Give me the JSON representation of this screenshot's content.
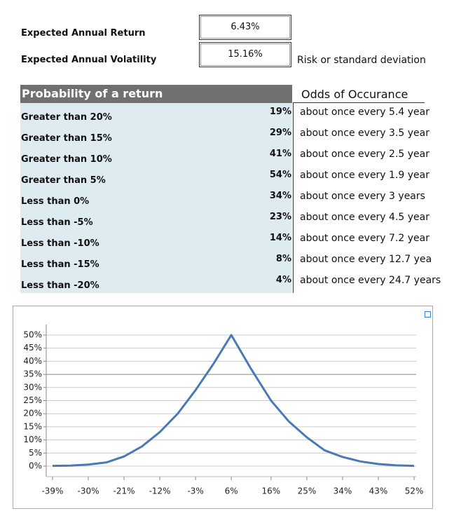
{
  "inputs": [
    {
      "label": "Expected Annual Return",
      "value": "6.43%"
    },
    {
      "label": "Expected Annual Volatility",
      "value": "15.16%",
      "note": "Risk or standard deviation"
    }
  ],
  "table": {
    "header": "Probability of a return",
    "odds_header": "Odds of Occurance",
    "rows": [
      [
        "Greater than 20%",
        "19%",
        "about once every 5.4 year"
      ],
      [
        "Greater than 15%",
        "29%",
        "about once every 3.5 year"
      ],
      [
        "Greater than 10%",
        "41%",
        "about once every 2.5 year"
      ],
      [
        "Greater than 5%",
        "54%",
        "about once every 1.9 year"
      ],
      [
        "Less than 0%",
        "34%",
        "about once every 3 years"
      ],
      [
        "Less than -5%",
        "23%",
        "about once every 4.5 year"
      ],
      [
        "Less than -10%",
        "14%",
        "about once every 7.2 year"
      ],
      [
        "Less than -15%",
        "8%",
        "about once every 12.7 yea"
      ],
      [
        "Less than -20%",
        "4%",
        "about once every 24.7 years"
      ]
    ]
  },
  "chart_data": {
    "type": "line",
    "color": "#4a7ab5",
    "grid": true,
    "x": [
      -39,
      -34.5,
      -30,
      -25.5,
      -21,
      -16.5,
      -12,
      -7.5,
      -3,
      1.5,
      6,
      11,
      16,
      20.5,
      25,
      29.5,
      34,
      38.5,
      43,
      47.5,
      52
    ],
    "values": [
      0.1,
      0.2,
      0.6,
      1.4,
      3.7,
      7.5,
      13,
      20,
      29,
      39,
      50,
      37,
      25,
      17,
      11,
      6,
      3.5,
      1.8,
      0.8,
      0.3,
      0.1
    ],
    "xlim": [
      -40,
      53
    ],
    "xticks": [
      {
        "value": -39,
        "label": "-39%"
      },
      {
        "value": -30,
        "label": "-30%"
      },
      {
        "value": -21,
        "label": "-21%"
      },
      {
        "value": -12,
        "label": "-12%"
      },
      {
        "value": -3,
        "label": "-3%"
      },
      {
        "value": 6,
        "label": "6%"
      },
      {
        "value": 16,
        "label": "16%"
      },
      {
        "value": 25,
        "label": "25%"
      },
      {
        "value": 34,
        "label": "34%"
      },
      {
        "value": 43,
        "label": "43%"
      },
      {
        "value": 52,
        "label": "52%"
      }
    ],
    "ylim": [
      -4,
      54
    ],
    "yticks": [
      {
        "value": 0,
        "label": "0%"
      },
      {
        "value": 5,
        "label": "5%"
      },
      {
        "value": 10,
        "label": "10%"
      },
      {
        "value": 15,
        "label": "15%"
      },
      {
        "value": 20,
        "label": "20%"
      },
      {
        "value": 25,
        "label": "25%"
      },
      {
        "value": 30,
        "label": "30%"
      },
      {
        "value": 35,
        "label": "35%"
      },
      {
        "value": 40,
        "label": "40%"
      },
      {
        "value": 45,
        "label": "45%"
      },
      {
        "value": 50,
        "label": "50%"
      }
    ]
  }
}
